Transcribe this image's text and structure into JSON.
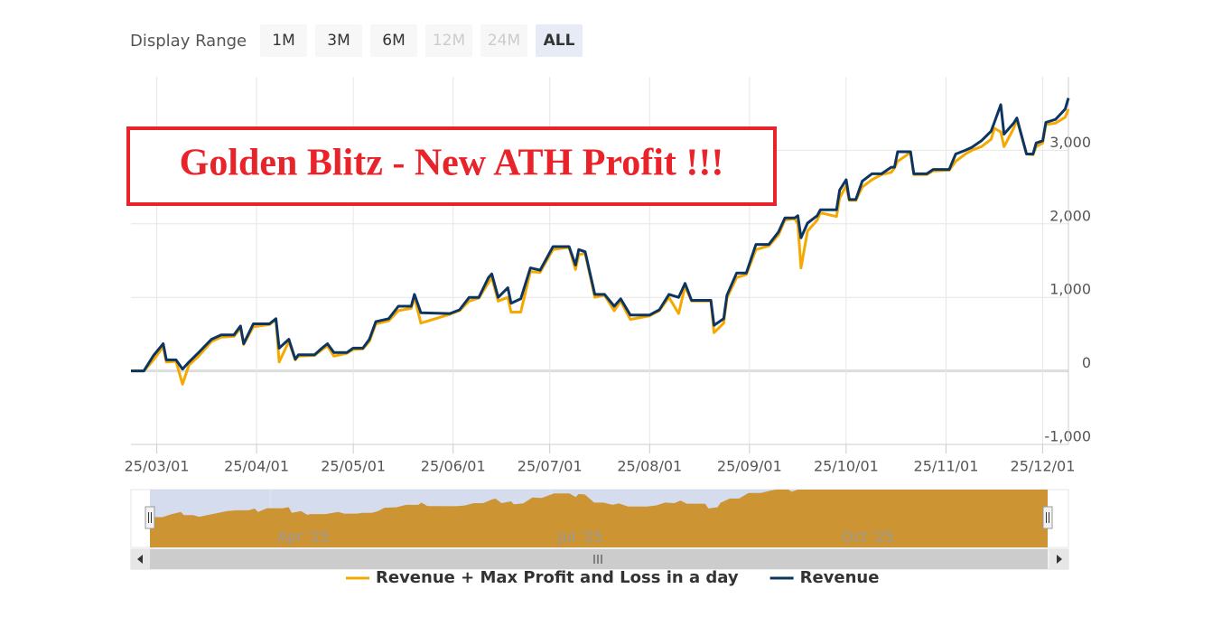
{
  "chart_data": {
    "type": "line",
    "annotation": "Golden Blitz - New ATH Profit !!!",
    "range_selector": {
      "label": "Display Range",
      "buttons": [
        "1M",
        "3M",
        "6M",
        "12M",
        "24M",
        "ALL"
      ],
      "disabled": [
        "12M",
        "24M"
      ],
      "selected": "ALL"
    },
    "x": [
      "2025-02-21",
      "2025-02-25",
      "2025-02-28",
      "2025-03-03",
      "2025-03-04",
      "2025-03-07",
      "2025-03-09",
      "2025-03-11",
      "2025-03-14",
      "2025-03-18",
      "2025-03-21",
      "2025-03-25",
      "2025-03-27",
      "2025-03-28",
      "2025-03-31",
      "2025-04-05",
      "2025-04-07",
      "2025-04-08",
      "2025-04-11",
      "2025-04-13",
      "2025-04-14",
      "2025-04-19",
      "2025-04-21",
      "2025-04-23",
      "2025-04-25",
      "2025-04-29",
      "2025-05-01",
      "2025-05-04",
      "2025-05-06",
      "2025-05-08",
      "2025-05-12",
      "2025-05-15",
      "2025-05-19",
      "2025-05-20",
      "2025-05-22",
      "2025-05-31",
      "2025-06-03",
      "2025-06-06",
      "2025-06-09",
      "2025-06-12",
      "2025-06-13",
      "2025-06-15",
      "2025-06-18",
      "2025-06-19",
      "2025-06-22",
      "2025-06-25",
      "2025-06-28",
      "2025-06-29",
      "2025-07-02",
      "2025-07-07",
      "2025-07-09",
      "2025-07-10",
      "2025-07-12",
      "2025-07-15",
      "2025-07-18",
      "2025-07-21",
      "2025-07-23",
      "2025-07-26",
      "2025-08-01",
      "2025-08-04",
      "2025-08-07",
      "2025-08-10",
      "2025-08-12",
      "2025-08-14",
      "2025-08-20",
      "2025-08-21",
      "2025-08-24",
      "2025-08-25",
      "2025-08-28",
      "2025-08-31",
      "2025-09-03",
      "2025-09-07",
      "2025-09-10",
      "2025-09-12",
      "2025-09-15",
      "2025-09-16",
      "2025-09-17",
      "2025-09-19",
      "2025-09-22",
      "2025-09-23",
      "2025-09-28",
      "2025-09-29",
      "2025-10-01",
      "2025-10-02",
      "2025-10-04",
      "2025-10-06",
      "2025-10-09",
      "2025-10-12",
      "2025-10-15",
      "2025-10-16",
      "2025-10-17",
      "2025-10-21",
      "2025-10-22",
      "2025-10-26",
      "2025-10-28",
      "2025-11-02",
      "2025-11-04",
      "2025-11-07",
      "2025-11-09",
      "2025-11-12",
      "2025-11-15",
      "2025-11-16",
      "2025-11-18",
      "2025-11-19",
      "2025-11-22",
      "2025-11-23",
      "2025-11-26",
      "2025-11-28",
      "2025-11-29",
      "2025-12-01",
      "2025-12-02",
      "2025-12-05",
      "2025-12-08",
      "2025-12-09"
    ],
    "series": [
      {
        "name": "Revenue + Max Profit and Loss in a day",
        "color": "#f5a800",
        "values": [
          0,
          0,
          150,
          330,
          120,
          130,
          -180,
          80,
          200,
          400,
          460,
          470,
          580,
          360,
          600,
          630,
          700,
          120,
          400,
          150,
          200,
          210,
          280,
          340,
          200,
          240,
          290,
          300,
          400,
          640,
          680,
          820,
          850,
          1000,
          650,
          770,
          820,
          950,
          990,
          1200,
          1270,
          950,
          1000,
          800,
          800,
          1350,
          1340,
          1420,
          1650,
          1680,
          1380,
          1580,
          1600,
          1000,
          1030,
          820,
          950,
          700,
          750,
          820,
          1000,
          780,
          1150,
          950,
          950,
          520,
          650,
          990,
          1270,
          1310,
          1650,
          1700,
          1850,
          2050,
          2070,
          2000,
          1400,
          1900,
          2050,
          2150,
          2100,
          2350,
          2520,
          2320,
          2320,
          2500,
          2600,
          2670,
          2700,
          2760,
          2850,
          2970,
          2670,
          2670,
          2720,
          2730,
          2850,
          2950,
          3000,
          3050,
          3150,
          3300,
          3250,
          3050,
          3300,
          3420,
          2950,
          2940,
          3050,
          3100,
          3350,
          3370,
          3450,
          3560
        ]
      },
      {
        "name": "Revenue",
        "color": "#0d3561",
        "values": [
          0,
          0,
          210,
          370,
          150,
          150,
          25,
          120,
          250,
          430,
          490,
          490,
          610,
          370,
          640,
          640,
          710,
          310,
          430,
          160,
          220,
          220,
          300,
          370,
          250,
          250,
          310,
          310,
          430,
          670,
          710,
          880,
          880,
          1040,
          790,
          780,
          830,
          1000,
          1000,
          1270,
          1320,
          1000,
          1130,
          920,
          980,
          1400,
          1370,
          1450,
          1690,
          1690,
          1440,
          1650,
          1620,
          1040,
          1040,
          880,
          980,
          760,
          760,
          830,
          1040,
          1000,
          1190,
          960,
          960,
          620,
          710,
          1030,
          1330,
          1330,
          1720,
          1720,
          1890,
          2080,
          2080,
          2110,
          1810,
          2010,
          2110,
          2190,
          2190,
          2460,
          2600,
          2330,
          2330,
          2580,
          2680,
          2680,
          2770,
          2770,
          2980,
          2980,
          2680,
          2680,
          2740,
          2740,
          2950,
          3000,
          3040,
          3130,
          3260,
          3380,
          3620,
          3220,
          3370,
          3440,
          2950,
          2950,
          3100,
          3130,
          3380,
          3420,
          3560,
          3710
        ]
      }
    ],
    "xlim": [
      "2025-02-21",
      "2025-12-09"
    ],
    "xticks": [
      {
        "value": "2025-03-01",
        "label": "25/03/01"
      },
      {
        "value": "2025-04-01",
        "label": "25/04/01"
      },
      {
        "value": "2025-05-01",
        "label": "25/05/01"
      },
      {
        "value": "2025-06-01",
        "label": "25/06/01"
      },
      {
        "value": "2025-07-01",
        "label": "25/07/01"
      },
      {
        "value": "2025-08-01",
        "label": "25/08/01"
      },
      {
        "value": "2025-09-01",
        "label": "25/09/01"
      },
      {
        "value": "2025-10-01",
        "label": "25/10/01"
      },
      {
        "value": "2025-11-01",
        "label": "25/11/01"
      },
      {
        "value": "2025-12-01",
        "label": "25/12/01"
      }
    ],
    "ylim": [
      -1000,
      4000
    ],
    "yticks": [
      {
        "value": -1000,
        "label": "-1,000"
      },
      0,
      {
        "value": 1000,
        "label": "1,000"
      },
      {
        "value": 2000,
        "label": "2,000"
      },
      {
        "value": 3000,
        "label": "3,000"
      }
    ],
    "grid": true,
    "navigator": {
      "color": "#cd9434",
      "xticks": [
        {
          "value": "2025-04-01",
          "label": "Apr '25"
        },
        {
          "value": "2025-07-01",
          "label": "Jul '25"
        },
        {
          "value": "2025-10-01",
          "label": "Oct '25"
        }
      ]
    }
  }
}
